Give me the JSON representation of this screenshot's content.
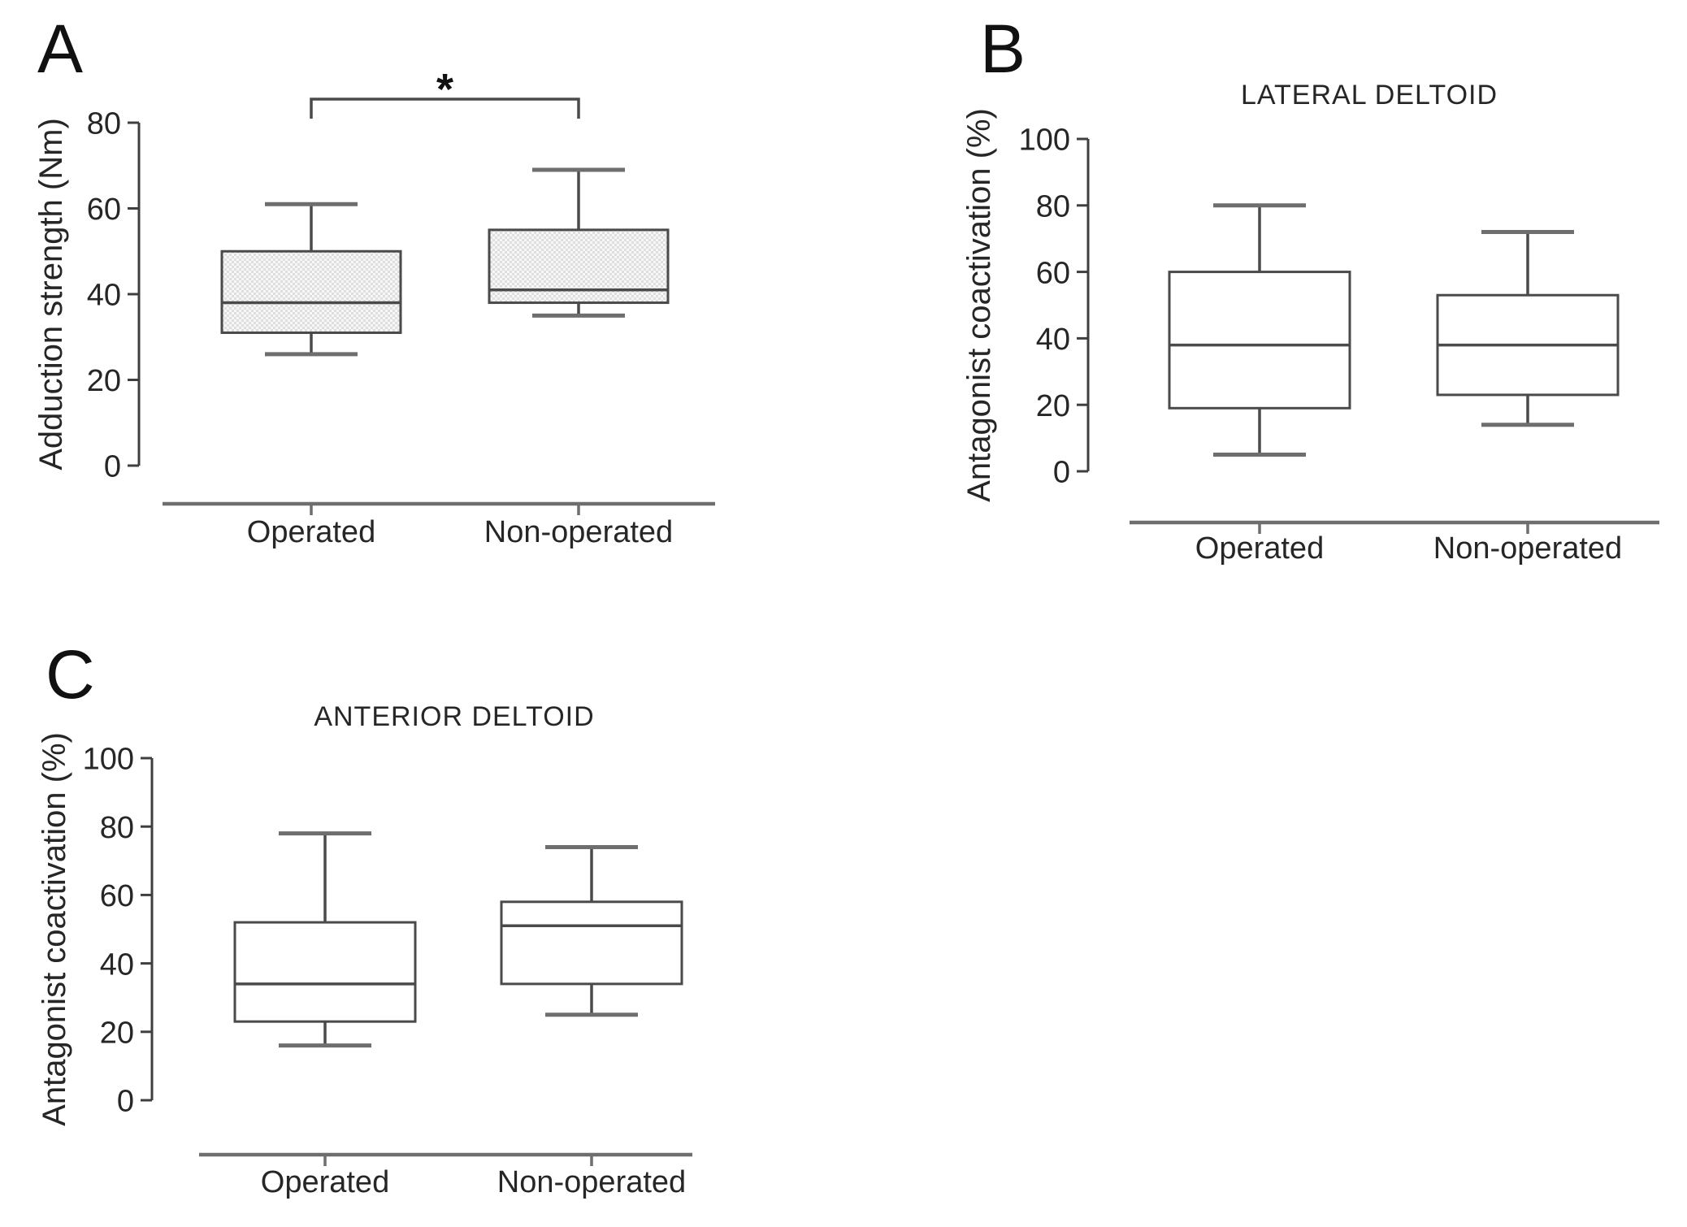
{
  "figure": {
    "background": "#ffffff",
    "text_color": "#262626",
    "axis_color": "#3f3f3f",
    "box_border_color": "#4a4a4a",
    "whisker_cap_color": "#6e6e6e",
    "dotted_fill_base": "#f7f7f7",
    "dotted_fill_dot": "#dedede",
    "white_fill": "#ffffff"
  },
  "chart_data": [
    {
      "id": "A",
      "type": "box",
      "panel_label": "A",
      "title": "",
      "ylabel": "Adduction strength (Nm)",
      "ylim": [
        0,
        80
      ],
      "yticks": [
        80,
        60,
        40,
        20,
        0
      ],
      "categories": [
        "Operated",
        "Non-operated"
      ],
      "box_style": "dotted-gray",
      "legend": "none",
      "grid": false,
      "series": [
        {
          "category": "Operated",
          "min": 26,
          "q1": 31,
          "median": 38,
          "q3": 50,
          "max": 61
        },
        {
          "category": "Non-operated",
          "min": 35,
          "q1": 38,
          "median": 41,
          "q3": 55,
          "max": 69
        }
      ],
      "significance": {
        "symbol": "*",
        "between": [
          "Operated",
          "Non-operated"
        ]
      }
    },
    {
      "id": "B",
      "type": "box",
      "panel_label": "B",
      "title": "LATERAL DELTOID",
      "ylabel": "Antagonist coactivation (%)",
      "ylim": [
        0,
        100
      ],
      "yticks": [
        100,
        80,
        60,
        40,
        20,
        0
      ],
      "categories": [
        "Operated",
        "Non-operated"
      ],
      "box_style": "white",
      "legend": "none",
      "grid": false,
      "series": [
        {
          "category": "Operated",
          "min": 5,
          "q1": 19,
          "median": 38,
          "q3": 60,
          "max": 80
        },
        {
          "category": "Non-operated",
          "min": 14,
          "q1": 23,
          "median": 38,
          "q3": 53,
          "max": 72
        }
      ]
    },
    {
      "id": "C",
      "type": "box",
      "panel_label": "C",
      "title": "ANTERIOR DELTOID",
      "ylabel": "Antagonist coactivation (%)",
      "ylim": [
        0,
        100
      ],
      "yticks": [
        100,
        80,
        60,
        40,
        20,
        0
      ],
      "categories": [
        "Operated",
        "Non-operated"
      ],
      "box_style": "white",
      "legend": "none",
      "grid": false,
      "series": [
        {
          "category": "Operated",
          "min": 16,
          "q1": 23,
          "median": 34,
          "q3": 52,
          "max": 78
        },
        {
          "category": "Non-operated",
          "min": 25,
          "q1": 34,
          "median": 51,
          "q3": 58,
          "max": 74
        }
      ]
    }
  ]
}
